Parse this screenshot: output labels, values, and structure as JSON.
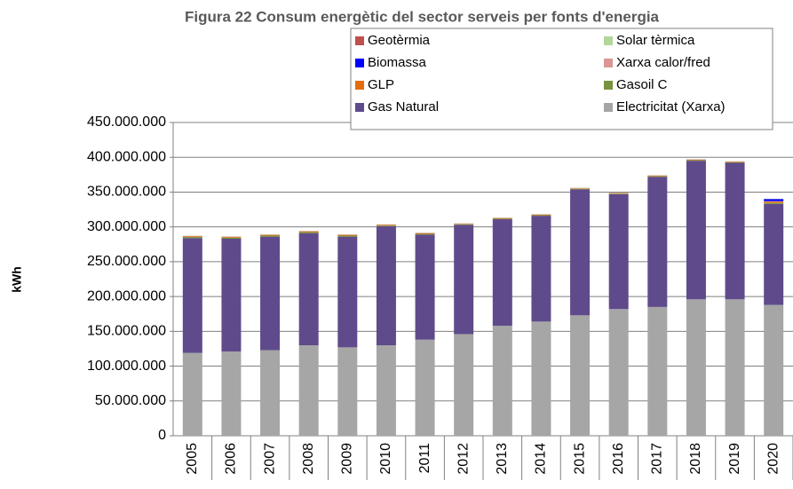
{
  "chart_data": {
    "type": "stacked_bar",
    "title": "Figura 22 Consum energètic del sector serveis per fonts d'energia",
    "y_label": "kWh",
    "categories": [
      "2005",
      "2006",
      "2007",
      "2008",
      "2009",
      "2010",
      "2011",
      "2012",
      "2013",
      "2014",
      "2015",
      "2016",
      "2017",
      "2018",
      "2019",
      "2020"
    ],
    "series": [
      {
        "name": "Electricitat (Xarxa)",
        "color": "#a6a6a6",
        "values": [
          119000000,
          121000000,
          123000000,
          130000000,
          127000000,
          130000000,
          138000000,
          146000000,
          158000000,
          164000000,
          173000000,
          182000000,
          185000000,
          196000000,
          196000000,
          188000000
        ]
      },
      {
        "name": "Gas Natural",
        "color": "#5f4b8b",
        "values": [
          165000000,
          162000000,
          163000000,
          161000000,
          159000000,
          171000000,
          151000000,
          157000000,
          153000000,
          152000000,
          181000000,
          165000000,
          187000000,
          199000000,
          196000000,
          145000000
        ]
      },
      {
        "name": "Gasoil C",
        "color": "#77933c",
        "values": [
          1500000,
          1500000,
          1500000,
          1500000,
          1500000,
          1000000,
          1000000,
          800000,
          800000,
          800000,
          800000,
          800000,
          800000,
          800000,
          800000,
          1500000
        ]
      },
      {
        "name": "GLP",
        "color": "#e46c0a",
        "values": [
          1000000,
          1000000,
          1000000,
          1000000,
          1000000,
          800000,
          800000,
          600000,
          600000,
          600000,
          600000,
          600000,
          600000,
          600000,
          600000,
          1500000
        ]
      },
      {
        "name": "Xarxa calor/fred",
        "color": "#d99694",
        "values": [
          500000,
          500000,
          500000,
          500000,
          500000,
          500000,
          500000,
          500000,
          500000,
          500000,
          500000,
          500000,
          500000,
          500000,
          500000,
          1000000
        ]
      },
      {
        "name": "Biomassa",
        "color": "#0000ff",
        "values": [
          0,
          0,
          0,
          0,
          0,
          0,
          0,
          0,
          0,
          0,
          0,
          0,
          0,
          0,
          0,
          3000000
        ]
      },
      {
        "name": "Solar tèrmica",
        "color": "#b3d69b",
        "values": [
          300000,
          300000,
          300000,
          300000,
          300000,
          300000,
          300000,
          300000,
          300000,
          300000,
          300000,
          300000,
          300000,
          300000,
          300000,
          300000
        ]
      },
      {
        "name": "Geotèrmia",
        "color": "#c0504d",
        "values": [
          100000,
          100000,
          100000,
          100000,
          100000,
          100000,
          100000,
          100000,
          100000,
          100000,
          100000,
          100000,
          100000,
          100000,
          100000,
          100000
        ]
      }
    ],
    "ylim": [
      0,
      450000000
    ],
    "yticks": [
      0,
      {
        "value": 50000000,
        "label": "50.000.000"
      },
      {
        "value": 100000000,
        "label": "100.000.000"
      },
      {
        "value": 150000000,
        "label": "150.000.000"
      },
      {
        "value": 200000000,
        "label": "200.000.000"
      },
      {
        "value": 250000000,
        "label": "250.000.000"
      },
      {
        "value": 300000000,
        "label": "300.000.000"
      },
      {
        "value": 350000000,
        "label": "350.000.000"
      },
      {
        "value": 400000000,
        "label": "400.000.000"
      },
      {
        "value": 450000000,
        "label": "450.000.000"
      }
    ],
    "grid": true
  }
}
